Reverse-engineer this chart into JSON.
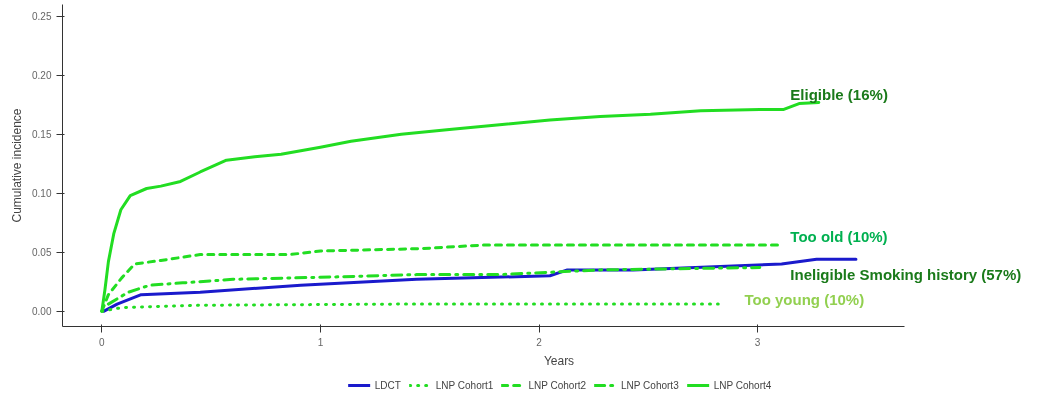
{
  "chart_data": {
    "type": "line",
    "xlabel": "Years",
    "ylabel": "Cumulative incidence",
    "xlim": [
      -0.18,
      3.67
    ],
    "ylim": [
      -0.013,
      0.26
    ],
    "xticks": [
      0,
      1,
      2,
      3
    ],
    "yticks": [
      {
        "value": 0,
        "label": "0.00"
      },
      {
        "value": 0.05,
        "label": "0.05"
      },
      {
        "value": 0.1,
        "label": "0.10"
      },
      {
        "value": 0.15,
        "label": "0.15"
      },
      {
        "value": 0.2,
        "label": "0.20"
      },
      {
        "value": 0.25,
        "label": "0.25"
      }
    ],
    "grid": false,
    "legend": "bottom",
    "marker": "none",
    "series": [
      {
        "name": "LDCT",
        "color": "#1a1acc",
        "line_style": "solid",
        "x": [
          0.01,
          0.07,
          0.18,
          0.45,
          0.91,
          1.44,
          2.05,
          2.13,
          2.43,
          3.11,
          3.27,
          3.45
        ],
        "values": [
          0,
          0.006,
          0.014,
          0.016,
          0.022,
          0.027,
          0.03,
          0.035,
          0.035,
          0.04,
          0.044,
          0.044
        ]
      },
      {
        "name": "LNP Cohort1",
        "color": "#22dd22",
        "line_style": "dotted",
        "x": [
          0,
          0.09,
          0.45,
          1.37,
          2.82
        ],
        "values": [
          0,
          0.003,
          0.005,
          0.006,
          0.006
        ]
      },
      {
        "name": "LNP Cohort2",
        "color": "#22dd22",
        "line_style": "dashed",
        "x": [
          0,
          0.03,
          0.09,
          0.15,
          0.27,
          0.45,
          0.86,
          1.0,
          1.46,
          1.74,
          3.1
        ],
        "values": [
          0,
          0.014,
          0.028,
          0.04,
          0.043,
          0.048,
          0.048,
          0.051,
          0.053,
          0.056,
          0.056
        ]
      },
      {
        "name": "LNP Cohort3",
        "color": "#22dd22",
        "line_style": "dashdot",
        "x": [
          0.03,
          0.12,
          0.22,
          0.37,
          0.6,
          1.06,
          1.44,
          1.82,
          2.28,
          3.01
        ],
        "values": [
          0.006,
          0.016,
          0.022,
          0.024,
          0.027,
          0.029,
          0.031,
          0.031,
          0.035,
          0.037
        ]
      },
      {
        "name": "LNP Cohort4",
        "color": "#22dd22",
        "line_style": "solid",
        "x": [
          0,
          0.014,
          0.03,
          0.055,
          0.087,
          0.13,
          0.205,
          0.27,
          0.36,
          0.45,
          0.57,
          0.7,
          0.82,
          1.0,
          1.14,
          1.37,
          1.59,
          1.82,
          2.05,
          2.28,
          2.51,
          2.74,
          3.01,
          3.12,
          3.19,
          3.28
        ],
        "values": [
          0,
          0.018,
          0.042,
          0.066,
          0.086,
          0.098,
          0.104,
          0.106,
          0.11,
          0.118,
          0.128,
          0.131,
          0.133,
          0.139,
          0.144,
          0.15,
          0.154,
          0.158,
          0.162,
          0.165,
          0.167,
          0.17,
          0.171,
          0.171,
          0.176,
          0.177
        ]
      }
    ],
    "annotations": [
      "Eligible (16%)",
      "Too old (10%)",
      "Ineligible Smoking history (57%)",
      "Too young (10%)"
    ]
  }
}
